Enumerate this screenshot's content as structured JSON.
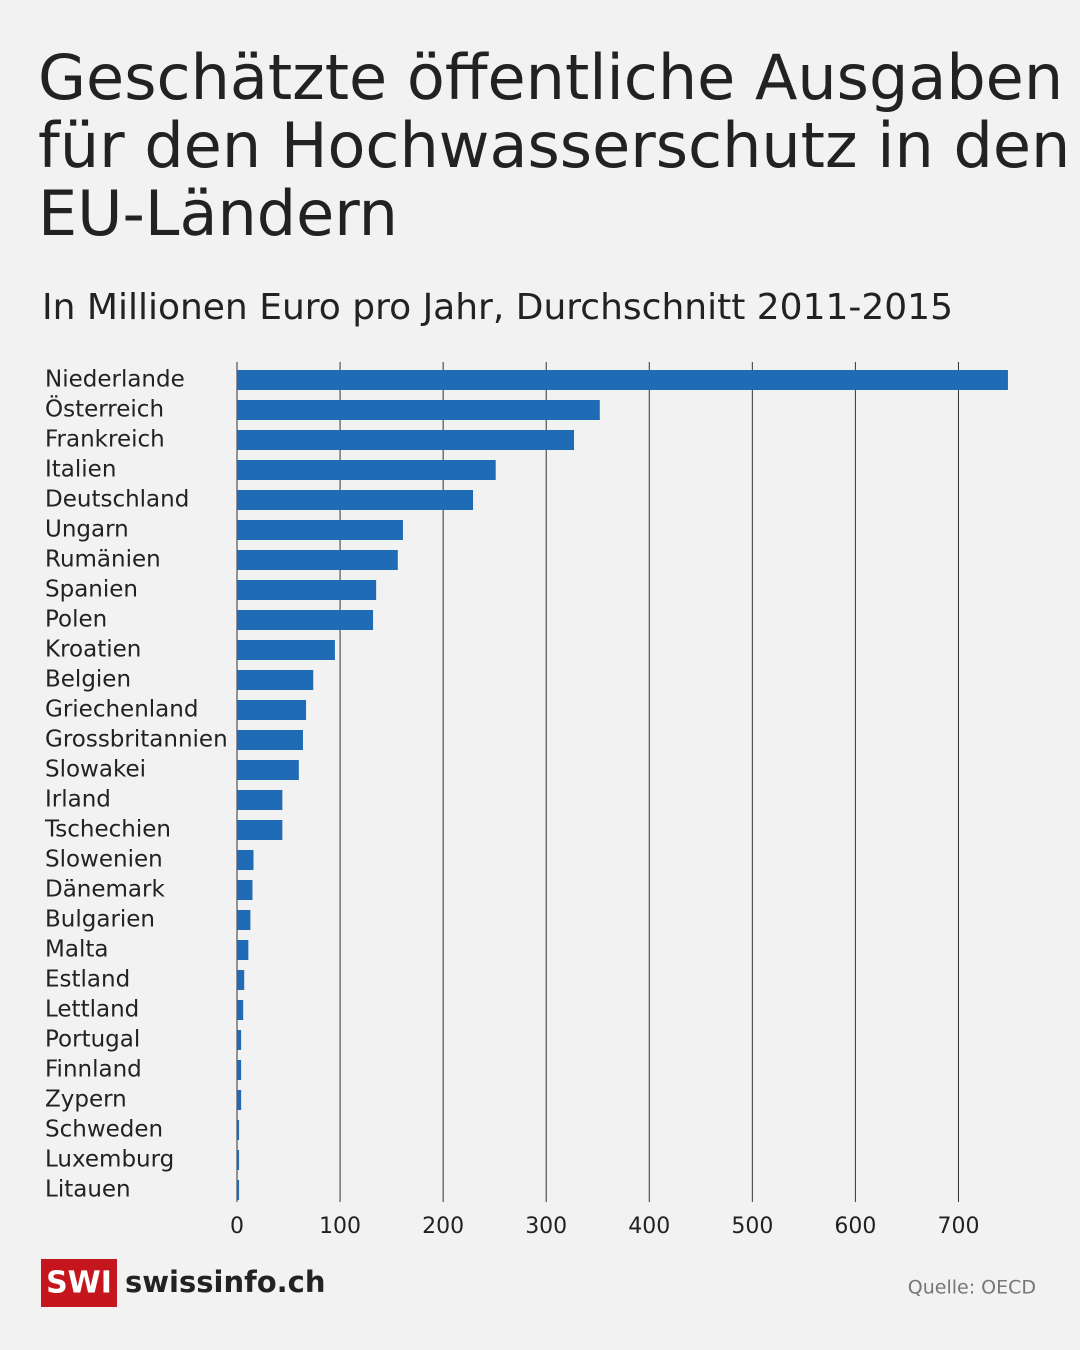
{
  "chart_data": {
    "type": "bar",
    "orientation": "horizontal",
    "title": [
      "Geschätzte öffentliche Ausgaben",
      "für den Hochwasserschutz in den",
      "EU-Ländern"
    ],
    "subtitle": "In Millionen Euro pro Jahr, Durchschnitt 2011-2015",
    "categories": [
      "Niederlande",
      "Österreich",
      "Frankreich",
      "Italien",
      "Deutschland",
      "Ungarn",
      "Rumänien",
      "Spanien",
      "Polen",
      "Kroatien",
      "Belgien",
      "Griechenland",
      "Grossbritannien",
      "Slowakei",
      "Irland",
      "Tschechien",
      "Slowenien",
      "Dänemark",
      "Bulgarien",
      "Malta",
      "Estland",
      "Lettland",
      "Portugal",
      "Finnland",
      "Zypern",
      "Schweden",
      "Luxemburg",
      "Litauen"
    ],
    "values": [
      748,
      352,
      327,
      251,
      229,
      161,
      156,
      135,
      132,
      95,
      74,
      67,
      64,
      60,
      44,
      44,
      16,
      15,
      13,
      11,
      7,
      6,
      4,
      4,
      4,
      2,
      2,
      2
    ],
    "color": "#1f6bb5",
    "xlim": [
      0,
      750
    ],
    "xticks": [
      0,
      100,
      200,
      300,
      400,
      500,
      600,
      700
    ],
    "grid": true,
    "logo": {
      "badge": "SWI",
      "name": "swissinfo.ch"
    },
    "source": "Quelle: OECD"
  }
}
